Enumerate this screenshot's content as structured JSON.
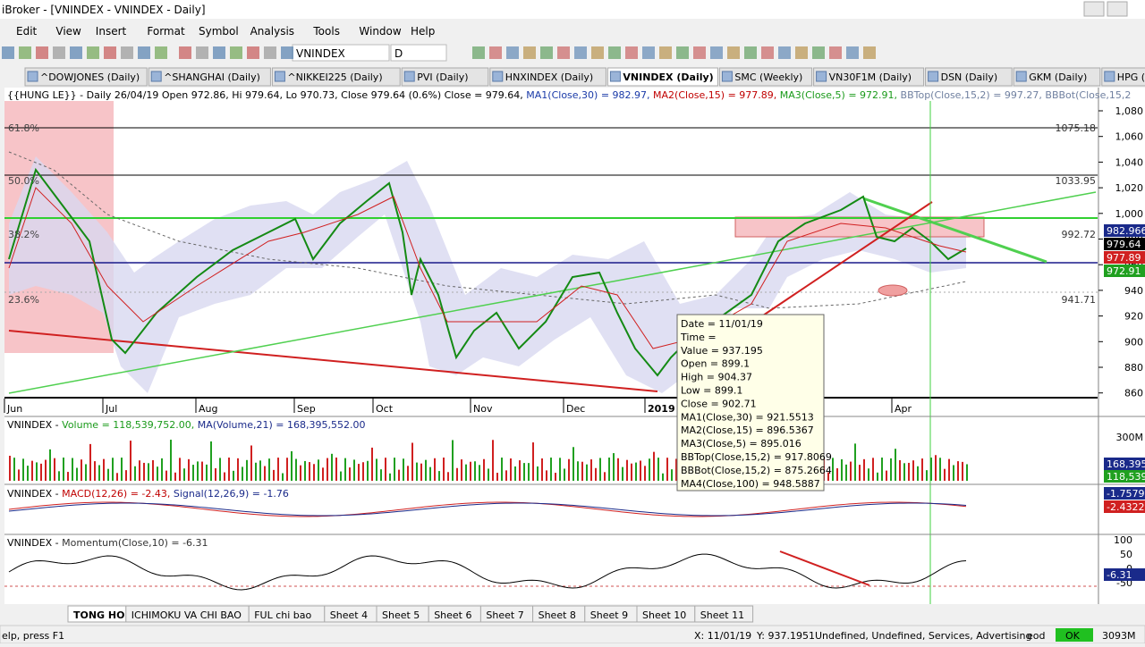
{
  "window": {
    "title": "iBroker - [VNINDEX - VNINDEX - Daily]"
  },
  "menu": [
    "Edit",
    "View",
    "Insert",
    "Format",
    "Symbol",
    "Analysis",
    "Tools",
    "Window",
    "Help"
  ],
  "toolbar": {
    "symbol": "VNINDEX",
    "interval": "D"
  },
  "tabs": {
    "items": [
      "^DOWJONES (Daily)",
      "^SHANGHAI (Daily)",
      "^NIKKEI225 (Daily)",
      "PVI (Daily)",
      "HNXINDEX (Daily)",
      "VNINDEX (Daily)",
      "SMC (Weekly)",
      "VN30F1M (Daily)",
      "DSN (Daily)",
      "GKM (Daily)",
      "HPG (Daily)"
    ],
    "active": 5
  },
  "price_pane": {
    "header": [
      {
        "text": "{{HUNG LE}} - Daily 26/04/19 Open 972.86, Hi 979.64, Lo 970.73, Close 979.64 (0.6%) Close = 979.64, ",
        "color": "#000000"
      },
      {
        "text": "MA1(Close,30) = 982.97, ",
        "color": "#1a3aa8"
      },
      {
        "text": "MA2(Close,15) = 977.89, ",
        "color": "#c00000"
      },
      {
        "text": "MA3(Close,5) = 972.91, ",
        "color": "#1a9a1a"
      },
      {
        "text": "BBTop(Close,15,2) = 997.27, ",
        "color": "#7080a0"
      },
      {
        "text": "BBBot(Close,15,2",
        "color": "#7080a0"
      }
    ],
    "axis_labels": [
      "1,080",
      "1,060",
      "1,040",
      "1,020",
      "1,000",
      "980",
      "960",
      "940",
      "920",
      "900",
      "880",
      "860"
    ],
    "value_boxes": [
      {
        "text": "982.966",
        "bg": "#1a2a8a"
      },
      {
        "text": "979.64",
        "bg": "#000000"
      },
      {
        "text": "977.89",
        "bg": "#d02020"
      },
      {
        "text": "972.91",
        "bg": "#20a020"
      }
    ],
    "fib_labels": [
      "61.8%",
      "50.0%",
      "38.2%",
      "23.6%"
    ],
    "level_labels": [
      "1075.18",
      "1033.95",
      "992.72",
      "941.71"
    ],
    "x_labels": [
      "Jun",
      "Jul",
      "Aug",
      "Sep",
      "Oct",
      "Nov",
      "Dec",
      "2019",
      "Apr"
    ]
  },
  "tooltip": [
    "Date = 11/01/19",
    "Time =",
    "Value = 937.195",
    "Open = 899.1",
    "High = 904.37",
    "Low = 899.1",
    "Close = 902.71",
    "MA1(Close,30) = 921.5513",
    "MA2(Close,15) = 896.5367",
    "MA3(Close,5) = 895.016",
    "BBTop(Close,15,2) = 917.8069",
    "BBBot(Close,15,2) = 875.2664",
    "MA4(Close,100) = 948.5887"
  ],
  "volume_pane": {
    "header": [
      {
        "text": "VNINDEX - ",
        "color": "#000000"
      },
      {
        "text": "Volume = 118,539,752.00, ",
        "color": "#1a9a1a"
      },
      {
        "text": "MA(Volume,21) = 168,395,552.00",
        "color": "#1a2a8a"
      }
    ],
    "axis_label": "300M",
    "value_boxes": [
      {
        "text": "168,395",
        "bg": "#1a2a8a"
      },
      {
        "text": "118,539",
        "bg": "#20a020"
      }
    ]
  },
  "macd_pane": {
    "header": [
      {
        "text": "VNINDEX - ",
        "color": "#000000"
      },
      {
        "text": "MACD(12,26) = -2.43, ",
        "color": "#c00000"
      },
      {
        "text": "Signal(12,26,9) = -1.76",
        "color": "#1a2a8a"
      }
    ],
    "value_boxes": [
      {
        "text": "-1.7579",
        "bg": "#1a2a8a"
      },
      {
        "text": "-2.4322",
        "bg": "#d02020"
      }
    ]
  },
  "momentum_pane": {
    "header": [
      {
        "text": "VNINDEX - ",
        "color": "#000000"
      },
      {
        "text": "Momentum(Close,10) = -6.31",
        "color": "#333333"
      }
    ],
    "axis_labels": [
      "100",
      "50",
      "0",
      "-50"
    ],
    "value_boxes": [
      {
        "text": "-6.31",
        "bg": "#1a2a8a"
      }
    ]
  },
  "sheets": {
    "items": [
      "TONG HOP",
      "ICHIMOKU VA CHI BAO",
      "FUL chi bao",
      "Sheet 4",
      "Sheet 5",
      "Sheet 6",
      "Sheet 7",
      "Sheet 8",
      "Sheet 9",
      "Sheet 10",
      "Sheet 11"
    ],
    "active": 0
  },
  "status": {
    "help": "elp, press F1",
    "x": "X: 11/01/19",
    "y": "Y: 937.1951",
    "info": "Undefined, Undefined, Services, Advertising",
    "mode": "eod",
    "ok": "OK",
    "memory": "3093M"
  }
}
